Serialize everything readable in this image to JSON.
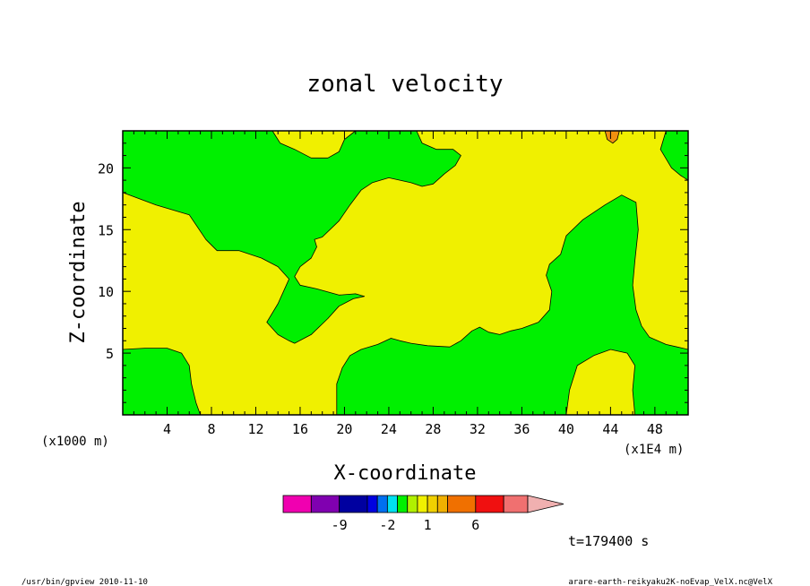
{
  "chart_data": {
    "type": "heatmap",
    "title": "zonal velocity",
    "xlabel": "X-coordinate",
    "ylabel": "Z-coordinate",
    "x_unit_left": "(x1000 m)",
    "x_unit_right": "(x1E4 m)",
    "xlim": [
      0,
      51
    ],
    "ylim": [
      0,
      23
    ],
    "x_ticks": [
      "4",
      "8",
      "12",
      "16",
      "20",
      "24",
      "28",
      "32",
      "36",
      "40",
      "44",
      "48"
    ],
    "y_ticks": [
      "5",
      "10",
      "15",
      "20"
    ],
    "regions": [
      {
        "value_class": "negative",
        "color": "#00f000",
        "points": [
          [
            0,
            18
          ],
          [
            3,
            17
          ],
          [
            6,
            16.2
          ],
          [
            7.5,
            14.2
          ],
          [
            8.5,
            13.3
          ],
          [
            10.5,
            13.3
          ],
          [
            12.5,
            12.7
          ],
          [
            14,
            12
          ],
          [
            15,
            11
          ],
          [
            14,
            9
          ],
          [
            13,
            7.5
          ],
          [
            14,
            6.5
          ],
          [
            15,
            6
          ],
          [
            15.5,
            5.8
          ],
          [
            17,
            6.5
          ],
          [
            18.5,
            7.8
          ],
          [
            19.5,
            8.8
          ],
          [
            20.8,
            9.4
          ],
          [
            21.8,
            9.6
          ],
          [
            21,
            9.8
          ],
          [
            19.5,
            9.7
          ],
          [
            17.5,
            10.2
          ],
          [
            16,
            10.5
          ],
          [
            15.5,
            11.2
          ],
          [
            16,
            12
          ],
          [
            17,
            12.7
          ],
          [
            17.5,
            13.6
          ],
          [
            17.3,
            14.2
          ],
          [
            18,
            14.4
          ],
          [
            19.5,
            15.7
          ],
          [
            20.5,
            17
          ],
          [
            21.5,
            18.2
          ],
          [
            22.5,
            18.8
          ],
          [
            24,
            19.2
          ],
          [
            26,
            18.8
          ],
          [
            27,
            18.5
          ],
          [
            28,
            18.7
          ],
          [
            29,
            19.5
          ],
          [
            30,
            20.2
          ],
          [
            30.5,
            21
          ],
          [
            29.8,
            21.5
          ],
          [
            28.3,
            21.5
          ],
          [
            27,
            22
          ],
          [
            26.5,
            23
          ],
          [
            21,
            23
          ],
          [
            20,
            22.3
          ],
          [
            19.5,
            21.3
          ],
          [
            18.5,
            20.8
          ],
          [
            17,
            20.8
          ],
          [
            15.5,
            21.5
          ],
          [
            14.2,
            22
          ],
          [
            13.5,
            23
          ],
          [
            0,
            23
          ]
        ]
      },
      {
        "value_class": "negative",
        "color": "#00f000",
        "points": [
          [
            0,
            0
          ],
          [
            0,
            5.3
          ],
          [
            2,
            5.4
          ],
          [
            4,
            5.4
          ],
          [
            5.3,
            5
          ],
          [
            6,
            4
          ],
          [
            6.2,
            2.5
          ],
          [
            6.6,
            1
          ],
          [
            7,
            0
          ]
        ]
      },
      {
        "value_class": "negative",
        "color": "#00f000",
        "points": [
          [
            19.3,
            0
          ],
          [
            19.3,
            2.5
          ],
          [
            19.8,
            3.8
          ],
          [
            20.5,
            4.8
          ],
          [
            21.5,
            5.3
          ],
          [
            23,
            5.7
          ],
          [
            24.2,
            6.2
          ],
          [
            25,
            6
          ],
          [
            26,
            5.8
          ],
          [
            27.5,
            5.6
          ],
          [
            29.5,
            5.5
          ],
          [
            30.5,
            6
          ],
          [
            31.5,
            6.8
          ],
          [
            32.2,
            7.1
          ],
          [
            33,
            6.7
          ],
          [
            34,
            6.5
          ],
          [
            35,
            6.8
          ],
          [
            36,
            7
          ],
          [
            37.5,
            7.5
          ],
          [
            38.5,
            8.5
          ],
          [
            38.7,
            10
          ],
          [
            38.2,
            11.3
          ],
          [
            38.5,
            12.2
          ],
          [
            39.5,
            13
          ],
          [
            40,
            14.5
          ],
          [
            41.5,
            15.8
          ],
          [
            43.5,
            17
          ],
          [
            45,
            17.8
          ],
          [
            46.3,
            17.2
          ],
          [
            46.5,
            15
          ],
          [
            46.2,
            12.5
          ],
          [
            46,
            10.5
          ],
          [
            46.3,
            8.5
          ],
          [
            46.8,
            7.2
          ],
          [
            47.5,
            6.3
          ],
          [
            49,
            5.7
          ],
          [
            50,
            5.5
          ],
          [
            51,
            5.3
          ],
          [
            51,
            0
          ],
          [
            46.2,
            0
          ],
          [
            46,
            2
          ],
          [
            46.2,
            4
          ],
          [
            45.5,
            5
          ],
          [
            44,
            5.3
          ],
          [
            42.5,
            4.8
          ],
          [
            41,
            4
          ],
          [
            40.3,
            2
          ],
          [
            40,
            0
          ]
        ]
      },
      {
        "value_class": "negative",
        "color": "#00f000",
        "points": [
          [
            49,
            23
          ],
          [
            48.5,
            21.5
          ],
          [
            49.5,
            20
          ],
          [
            50.3,
            19.4
          ],
          [
            51,
            19
          ],
          [
            51,
            23
          ]
        ]
      },
      {
        "value_class": "positive",
        "color": "#f09010",
        "points": [
          [
            43.5,
            23
          ],
          [
            43.7,
            22.3
          ],
          [
            44.2,
            22
          ],
          [
            44.6,
            22.3
          ],
          [
            44.8,
            23
          ]
        ]
      }
    ],
    "background_class": "positive",
    "background_color": "#f0f000",
    "colorbar": {
      "colors": [
        "#f000b0",
        "#8000b0",
        "#0000a0",
        "#0000e0",
        "#0070f0",
        "#00e0f0",
        "#00f000",
        "#b0f000",
        "#f0f000",
        "#f0d000",
        "#f0b000",
        "#f07000",
        "#f01010",
        "#f07070"
      ],
      "extend_color": "#f0b0b0",
      "labels": [
        "-9",
        "-2",
        "1",
        "6"
      ]
    },
    "time_label": "t=179400 s"
  },
  "footer": {
    "left": "/usr/bin/gpview   2010-11-10",
    "right": "arare-earth-reikyaku2K-noEvap_VelX.nc@VelX"
  }
}
